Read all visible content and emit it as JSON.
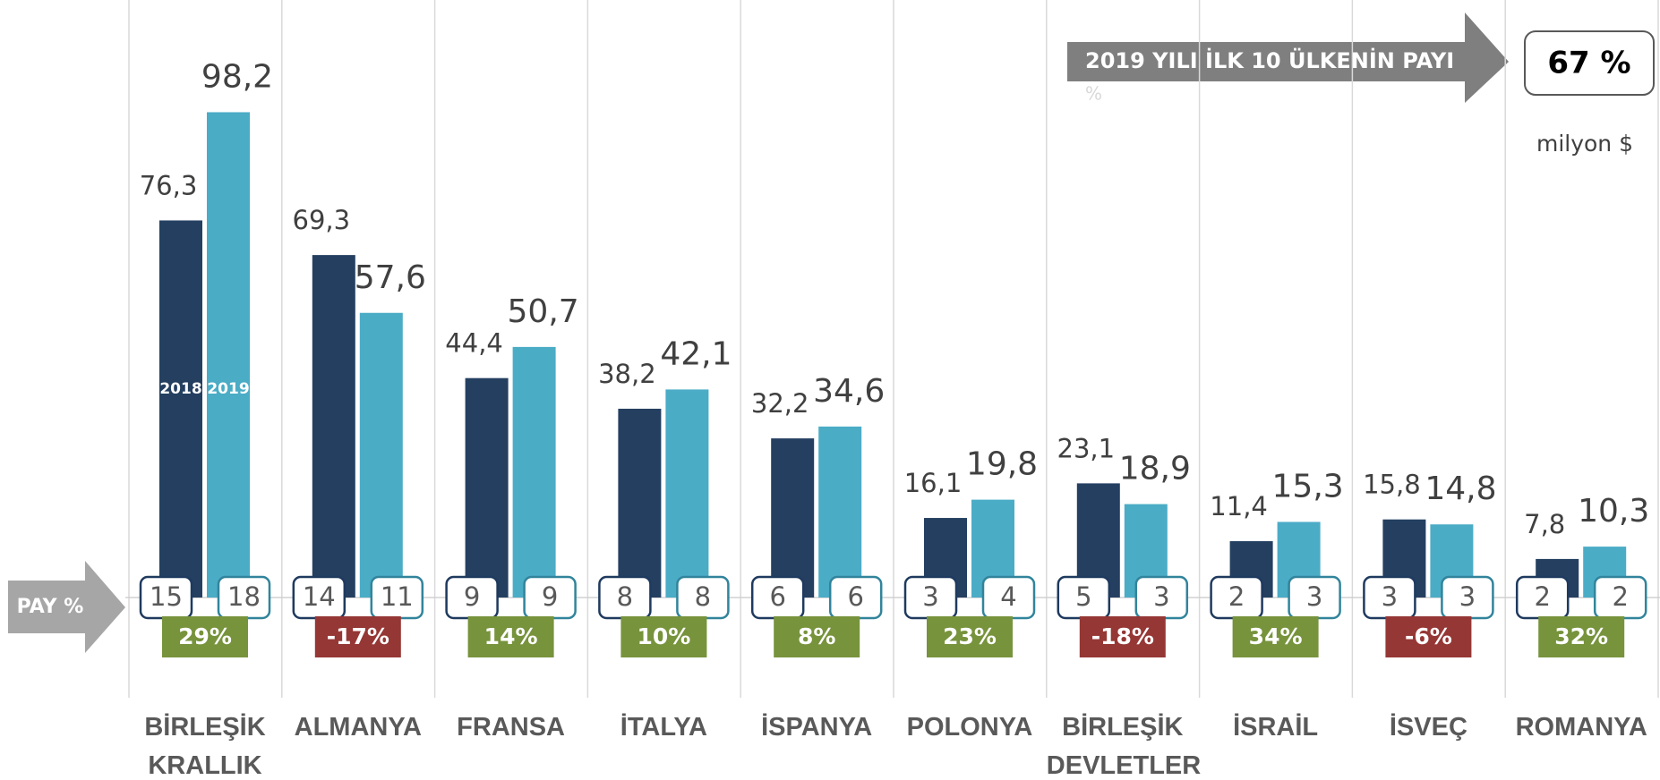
{
  "chart_data": {
    "type": "bar",
    "categories": [
      "BİRLEŞİK\nKRALLIK",
      "ALMANYA",
      "FRANSA",
      "İTALYA",
      "İSPANYA",
      "POLONYA",
      "BİRLEŞİK\nDEVLETLER",
      "İSRAİL",
      "İSVEÇ",
      "ROMANYA"
    ],
    "series": [
      {
        "name": "2018",
        "color": "#243f60",
        "border": "#1f3a5f",
        "values": [
          76.3,
          69.3,
          44.4,
          38.2,
          32.2,
          16.1,
          23.1,
          11.4,
          15.8,
          7.8
        ],
        "value_labels": [
          "76,3",
          "69,3",
          "44,4",
          "38,2",
          "32,2",
          "16,1",
          "23,1",
          "11,4",
          "15,8",
          "7,8"
        ],
        "shares": [
          15,
          14,
          9,
          8,
          6,
          3,
          5,
          2,
          3,
          2
        ]
      },
      {
        "name": "2019",
        "color": "#4bacc6",
        "border": "#31849b",
        "values": [
          98.2,
          57.6,
          50.7,
          42.1,
          34.6,
          19.8,
          18.9,
          15.3,
          14.8,
          10.3
        ],
        "value_labels": [
          "98,2",
          "57,6",
          "50,7",
          "42,1",
          "34,6",
          "19,8",
          "18,9",
          "15,3",
          "14,8",
          "10,3"
        ],
        "shares": [
          18,
          11,
          9,
          8,
          6,
          4,
          3,
          3,
          3,
          2
        ]
      }
    ],
    "growth": {
      "values": [
        29,
        -17,
        14,
        10,
        8,
        23,
        -18,
        34,
        -6,
        32
      ],
      "value_labels": [
        "29%",
        "-17%",
        "14%",
        "10%",
        "8%",
        "23%",
        "-18%",
        "34%",
        "-6%",
        "32%"
      ],
      "positive_color": "#77933c",
      "negative_color": "#953735"
    },
    "ylim": [
      0,
      120
    ],
    "share_label": "PAY %",
    "top10_title": "2019 YILI İLK 10 ÜLKENİN PAYI",
    "top10_subtext": "%",
    "top10_share": "67 %",
    "unit": "milyon $"
  }
}
